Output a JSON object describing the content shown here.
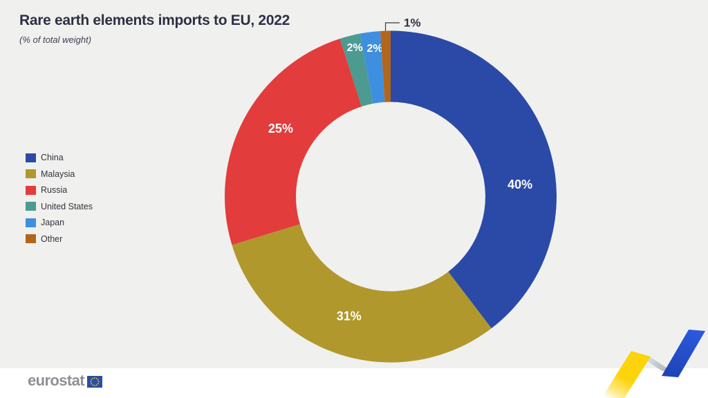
{
  "chart_data": {
    "type": "donut",
    "title": "Rare earth elements imports to EU, 2022",
    "subtitle": "(% of total weight)",
    "unit": "%",
    "legend_position": "left",
    "label_style": {
      "inside_color": "#ffffff",
      "outside_color": "#2d3044"
    },
    "segments": [
      {
        "label": "China",
        "value": 40,
        "value_label": "40%",
        "color": "#2b4aa7"
      },
      {
        "label": "Malaysia",
        "value": 31,
        "value_label": "31%",
        "color": "#b0982c"
      },
      {
        "label": "Russia",
        "value": 25,
        "value_label": "25%",
        "color": "#e23c3c"
      },
      {
        "label": "United States",
        "value": 2,
        "value_label": "2%",
        "color": "#4c9a90"
      },
      {
        "label": "Japan",
        "value": 2,
        "value_label": "2%",
        "color": "#3f8fe0"
      },
      {
        "label": "Other",
        "value": 1,
        "value_label": "1%",
        "color": "#b2661b"
      }
    ]
  },
  "footer": {
    "brand": "eurostat"
  },
  "colors": {
    "background": "#f0f0ee",
    "footer_background": "#ffffff",
    "title_text": "#2d3044",
    "ribbon_yellow": "#fdd30b",
    "ribbon_blue": "#2652cc",
    "ribbon_silver": "#b9bdc4",
    "eu_flag_blue": "#2b4fa0",
    "eu_star_yellow": "#ffd617"
  }
}
